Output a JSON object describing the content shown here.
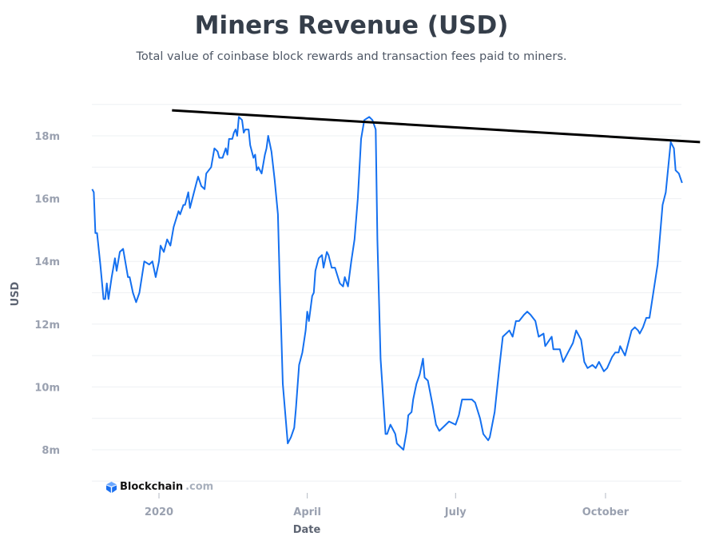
{
  "title": "Miners Revenue (USD)",
  "subtitle": "Total value of coinbase block rewards and transaction fees paid to miners.",
  "logo": {
    "brand": "Blockchain",
    "domain": ".com",
    "icon": "blockchain-cube-icon"
  },
  "chart_data": {
    "type": "line",
    "title": "Miners Revenue (USD)",
    "xlabel": "Date",
    "ylabel": "USD",
    "ylim": [
      7000000,
      19000000
    ],
    "grid": true,
    "y_ticks": [
      {
        "v": 8000000,
        "label": "8m"
      },
      {
        "v": 10000000,
        "label": "10m"
      },
      {
        "v": 12000000,
        "label": "12m"
      },
      {
        "v": 14000000,
        "label": "14m"
      },
      {
        "v": 16000000,
        "label": "16m"
      },
      {
        "v": 18000000,
        "label": "18m"
      }
    ],
    "x_ticks": [
      {
        "date": "2020-01-01",
        "label": "2020"
      },
      {
        "date": "2020-04-01",
        "label": "April"
      },
      {
        "date": "2020-07-01",
        "label": "July"
      },
      {
        "date": "2020-10-01",
        "label": "October"
      }
    ],
    "colors": {
      "line": "#1470f0",
      "trendline": "#000000",
      "grid": "#eef0f3"
    },
    "series": [
      {
        "x": [
          "2019-11-21",
          "2019-11-22",
          "2019-11-23",
          "2019-11-24",
          "2019-11-26",
          "2019-11-28",
          "2019-11-29",
          "2019-11-30",
          "2019-12-01",
          "2019-12-03",
          "2019-12-05",
          "2019-12-06",
          "2019-12-08",
          "2019-12-10",
          "2019-12-13",
          "2019-12-14",
          "2019-12-16",
          "2019-12-18",
          "2019-12-20",
          "2019-12-23",
          "2019-12-26",
          "2019-12-28",
          "2019-12-30",
          "2020-01-01",
          "2020-01-02",
          "2020-01-04",
          "2020-01-06",
          "2020-01-08",
          "2020-01-10",
          "2020-01-13",
          "2020-01-14",
          "2020-01-16",
          "2020-01-17",
          "2020-01-19",
          "2020-01-20",
          "2020-01-22",
          "2020-01-24",
          "2020-01-25",
          "2020-01-27",
          "2020-01-29",
          "2020-01-30",
          "2020-02-02",
          "2020-02-04",
          "2020-02-06",
          "2020-02-07",
          "2020-02-09",
          "2020-02-11",
          "2020-02-12",
          "2020-02-13",
          "2020-02-15",
          "2020-02-16",
          "2020-02-17",
          "2020-02-18",
          "2020-02-19",
          "2020-02-21",
          "2020-02-22",
          "2020-02-23",
          "2020-02-25",
          "2020-02-26",
          "2020-02-28",
          "2020-02-29",
          "2020-03-01",
          "2020-03-02",
          "2020-03-04",
          "2020-03-06",
          "2020-03-07",
          "2020-03-08",
          "2020-03-10",
          "2020-03-12",
          "2020-03-14",
          "2020-03-15",
          "2020-03-17",
          "2020-03-20",
          "2020-03-22",
          "2020-03-24",
          "2020-03-25",
          "2020-03-27",
          "2020-03-29",
          "2020-03-31",
          "2020-04-01",
          "2020-04-02",
          "2020-04-04",
          "2020-04-05",
          "2020-04-06",
          "2020-04-08",
          "2020-04-10",
          "2020-04-11",
          "2020-04-13",
          "2020-04-14",
          "2020-04-16",
          "2020-04-18",
          "2020-04-21",
          "2020-04-23",
          "2020-04-24",
          "2020-04-26",
          "2020-04-28",
          "2020-04-30",
          "2020-05-02",
          "2020-05-04",
          "2020-05-06",
          "2020-05-09",
          "2020-05-11",
          "2020-05-13",
          "2020-05-14",
          "2020-05-16",
          "2020-05-19",
          "2020-05-20",
          "2020-05-22",
          "2020-05-24",
          "2020-05-25",
          "2020-05-26",
          "2020-05-28",
          "2020-05-30",
          "2020-06-01",
          "2020-06-02",
          "2020-06-04",
          "2020-06-05",
          "2020-06-07",
          "2020-06-09",
          "2020-06-11",
          "2020-06-12",
          "2020-06-14",
          "2020-06-17",
          "2020-06-19",
          "2020-06-21",
          "2020-06-23",
          "2020-06-25",
          "2020-06-27",
          "2020-07-01",
          "2020-07-03",
          "2020-07-05",
          "2020-07-08",
          "2020-07-11",
          "2020-07-13",
          "2020-07-16",
          "2020-07-18",
          "2020-07-21",
          "2020-07-22",
          "2020-07-25",
          "2020-07-28",
          "2020-07-30",
          "2020-08-03",
          "2020-08-05",
          "2020-08-07",
          "2020-08-09",
          "2020-08-12",
          "2020-08-14",
          "2020-08-16",
          "2020-08-19",
          "2020-08-21",
          "2020-08-24",
          "2020-08-25",
          "2020-08-29",
          "2020-08-30",
          "2020-09-03",
          "2020-09-05",
          "2020-09-08",
          "2020-09-11",
          "2020-09-13",
          "2020-09-16",
          "2020-09-18",
          "2020-09-20",
          "2020-09-23",
          "2020-09-25",
          "2020-09-27",
          "2020-09-30",
          "2020-10-02",
          "2020-10-05",
          "2020-10-07",
          "2020-10-09",
          "2020-10-10",
          "2020-10-13",
          "2020-10-15",
          "2020-10-17",
          "2020-10-19",
          "2020-10-21",
          "2020-10-22",
          "2020-10-24",
          "2020-10-26",
          "2020-10-27",
          "2020-10-28",
          "2020-11-02",
          "2020-11-05",
          "2020-11-07",
          "2020-11-10",
          "2020-11-12",
          "2020-11-13",
          "2020-11-15",
          "2020-11-17"
        ],
        "y": [
          16.3,
          16.2,
          14.9,
          14.9,
          13.9,
          12.8,
          12.8,
          13.3,
          12.8,
          13.5,
          14.1,
          13.7,
          14.3,
          14.4,
          13.5,
          13.5,
          13.0,
          12.7,
          13.0,
          14.0,
          13.9,
          14.0,
          13.5,
          14.0,
          14.5,
          14.3,
          14.7,
          14.5,
          15.1,
          15.6,
          15.5,
          15.8,
          15.8,
          16.2,
          15.7,
          16.1,
          16.5,
          16.7,
          16.4,
          16.3,
          16.8,
          17.0,
          17.6,
          17.5,
          17.3,
          17.3,
          17.6,
          17.4,
          17.9,
          17.9,
          18.1,
          18.2,
          18.0,
          18.6,
          18.5,
          18.1,
          18.2,
          18.2,
          17.7,
          17.3,
          17.4,
          16.9,
          17.0,
          16.8,
          17.4,
          17.6,
          18.0,
          17.5,
          16.6,
          15.5,
          13.5,
          10.1,
          8.2,
          8.4,
          8.7,
          9.3,
          10.7,
          11.1,
          11.8,
          12.4,
          12.1,
          12.9,
          13.0,
          13.7,
          14.1,
          14.2,
          13.8,
          14.3,
          14.2,
          13.8,
          13.8,
          13.3,
          13.2,
          13.5,
          13.2,
          14.0,
          14.7,
          16.0,
          17.9,
          18.5,
          18.6,
          18.5,
          18.2,
          14.7,
          10.9,
          8.5,
          8.5,
          8.8,
          8.6,
          8.5,
          8.2,
          8.1,
          8.0,
          8.6,
          9.1,
          9.2,
          9.6,
          10.1,
          10.4,
          10.9,
          10.3,
          10.2,
          9.4,
          8.8,
          8.6,
          8.7,
          8.8,
          8.9,
          8.8,
          9.1,
          9.6,
          9.6,
          9.6,
          9.5,
          9.0,
          8.5,
          8.3,
          8.4,
          9.2,
          10.7,
          11.6,
          11.8,
          11.6,
          12.1,
          12.1,
          12.3,
          12.4,
          12.3,
          12.1,
          11.6,
          11.7,
          11.3,
          11.6,
          11.2,
          11.2,
          10.8,
          11.1,
          11.4,
          11.8,
          11.5,
          10.8,
          10.6,
          10.7,
          10.6,
          10.8,
          10.5,
          10.6,
          10.95,
          11.1,
          11.1,
          11.3,
          11.0,
          11.4,
          11.8,
          11.9,
          11.8,
          11.7,
          11.9,
          12.2,
          12.2,
          12.2,
          13.9,
          15.8,
          16.2,
          17.8,
          17.6,
          16.9,
          16.8,
          16.5
        ],
        "y_unit": "million USD"
      }
    ],
    "annotations": [
      {
        "type": "trendline",
        "from": {
          "date": "2020-01-09",
          "value": 18.81
        },
        "to": {
          "date": "2020-11-28",
          "value": 17.8
        },
        "y_unit": "million USD"
      }
    ]
  }
}
